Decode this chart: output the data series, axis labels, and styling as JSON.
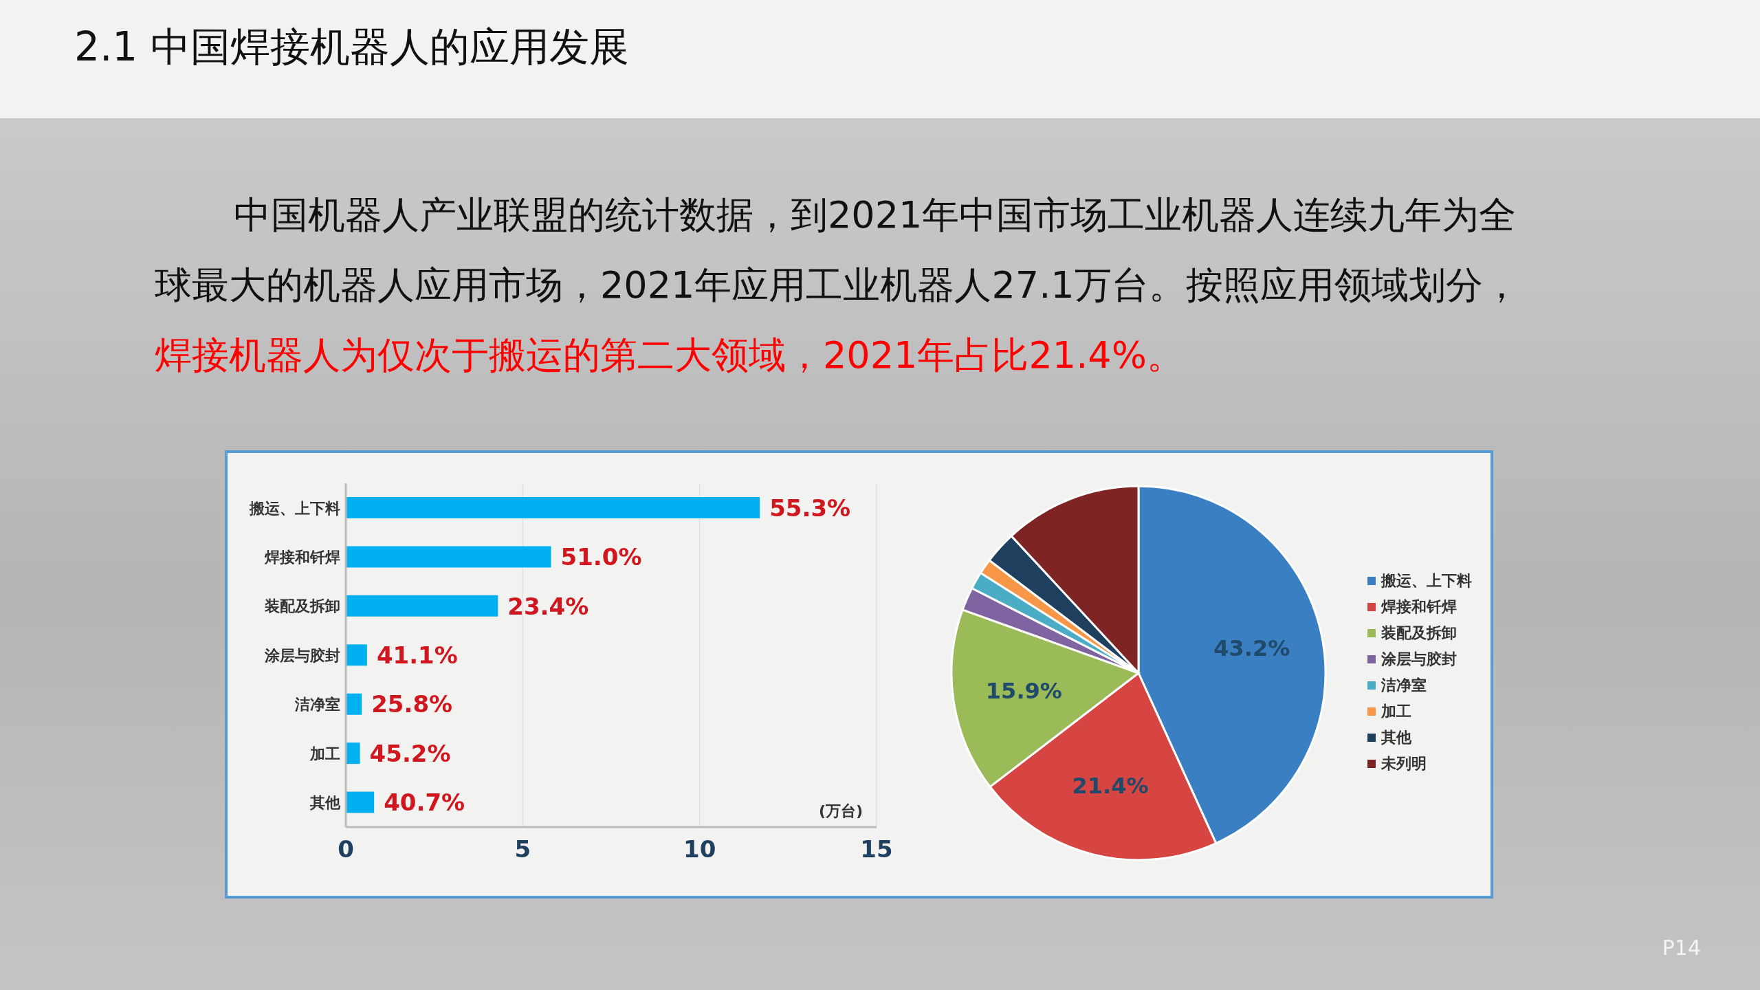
{
  "chart_data": [
    {
      "type": "bar",
      "orientation": "horizontal",
      "title": "2.1  中国焊接机器人的应用发展",
      "annotations": [
        "中国机器人产业联盟的统计数据，到2021年中国市场工业机器人连续九年为全球最大的机器人应用市场，2021年应用工业机器人27.1万台。按照应用领域划分，",
        "焊接机器人为仅次于搬运的第二大领域，2021年占比21.4%。",
        "P14",
        {
          "text": "55.3%",
          "x": 11.7,
          "y": "搬运、上下料"
        },
        {
          "text": "51.0%",
          "x": 5.8,
          "y": "焊接和钎焊"
        },
        {
          "text": "23.4%",
          "x": 4.3,
          "y": "装配及拆卸"
        },
        {
          "text": "41.1%",
          "x": 0.6,
          "y": "涂层与胶封"
        },
        {
          "text": "25.8%",
          "x": 0.45,
          "y": "洁净室"
        },
        {
          "text": "45.2%",
          "x": 0.4,
          "y": "加工"
        },
        {
          "text": "40.7%",
          "x": 0.8,
          "y": "其他"
        }
      ],
      "categories": [
        "搬运、上下料",
        "焊接和钎焊",
        "装配及拆卸",
        "涂层与胶封",
        "洁净室",
        "加工",
        "其他"
      ],
      "values": [
        11.7,
        5.8,
        4.3,
        0.6,
        0.45,
        0.4,
        0.8
      ],
      "color": "#00b0f0",
      "xlabel": "(万台)",
      "xlim": [
        0,
        15
      ],
      "xticks": [
        0,
        5,
        10,
        15
      ],
      "grid": "x"
    },
    {
      "type": "pie",
      "categories": [
        "搬运、上下料",
        "焊接和钎焊",
        "装配及拆卸",
        "涂层与胶封",
        "洁净室",
        "加工",
        "其他",
        "未列明"
      ],
      "values": [
        43.2,
        21.4,
        15.9,
        2.0,
        1.5,
        1.3,
        2.8,
        11.9
      ],
      "value_labels": [
        "43.2%",
        "21.4%",
        "15.9%",
        null,
        null,
        null,
        null,
        null
      ],
      "colors": [
        "#3a7fc1",
        "#d64541",
        "#9bbb59",
        "#8064a2",
        "#4bacc6",
        "#f79646",
        "#1f3f5f",
        "#7f2424"
      ],
      "legend": "right"
    }
  ]
}
